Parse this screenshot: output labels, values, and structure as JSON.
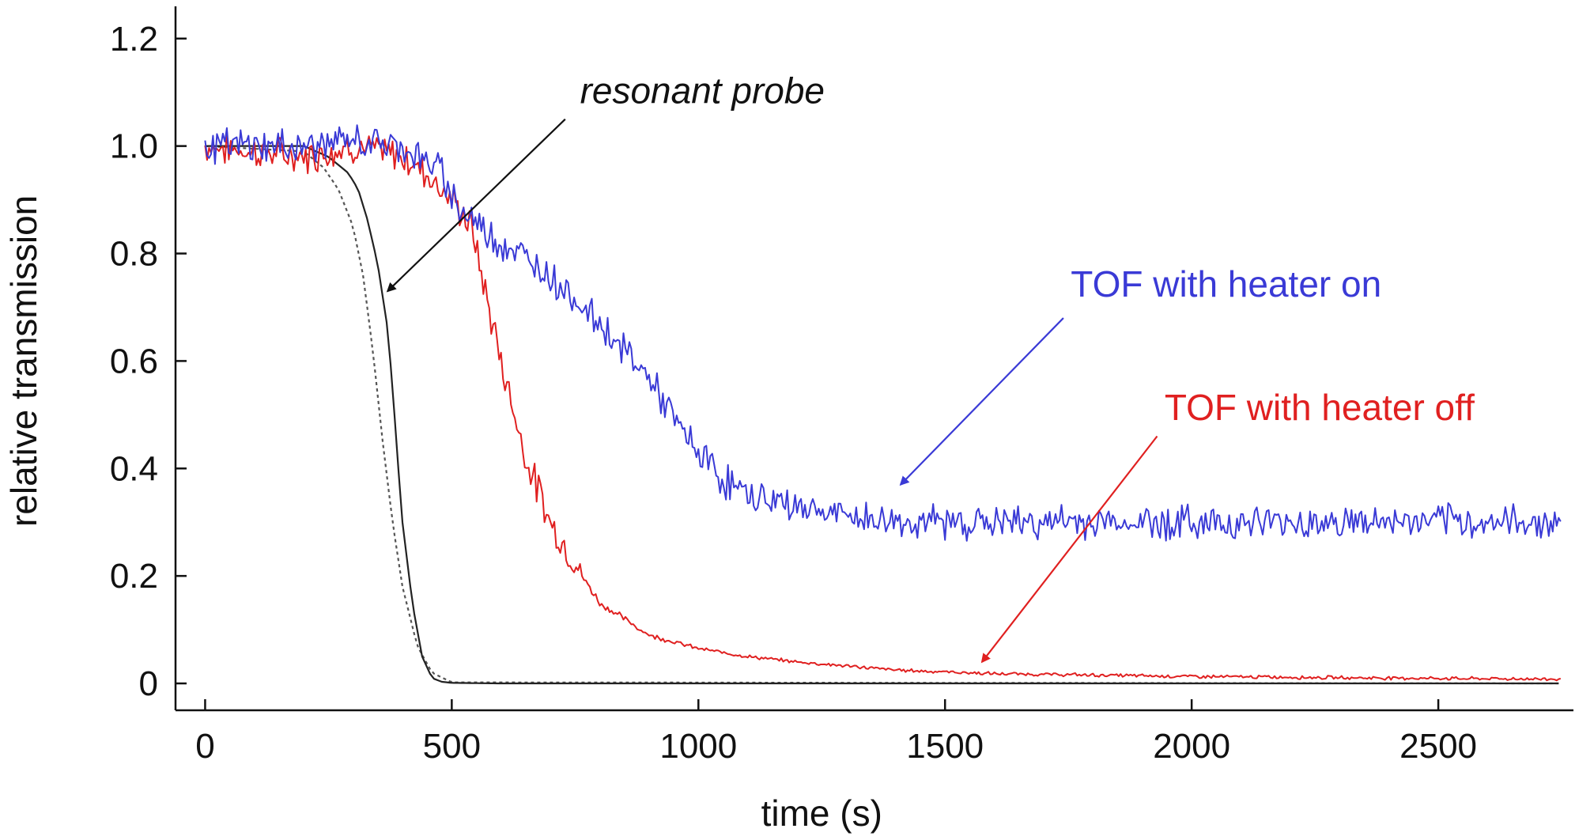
{
  "chart_data": {
    "type": "line",
    "title": "",
    "xlabel": "time (s)",
    "ylabel": "relative transmission",
    "xlim": [
      -60,
      2790
    ],
    "ylim": [
      -0.05,
      1.26
    ],
    "xticks": [
      0,
      500,
      1000,
      1500,
      2000,
      2500
    ],
    "xtick_labels": [
      "0",
      "500",
      "1000",
      "1500",
      "2000",
      "2500"
    ],
    "yticks": [
      0,
      0.2,
      0.4,
      0.6,
      0.8,
      1.0,
      1.2
    ],
    "ytick_labels": [
      "0",
      "0.2",
      "0.4",
      "0.6",
      "0.8",
      "1.0",
      "1.2"
    ],
    "grid": false,
    "series": [
      {
        "key": "heater_on",
        "color": "#3a3ad6",
        "noise": 0.025,
        "x": [
          0,
          100,
          200,
          300,
          400,
          480,
          520,
          560,
          600,
          700,
          800,
          900,
          950,
          1000,
          1050,
          1100,
          1150,
          1200,
          1300,
          1400,
          1600,
          2000,
          2400,
          2750
        ],
        "y": [
          1.0,
          1.0,
          1.0,
          1.01,
          1.0,
          0.95,
          0.88,
          0.85,
          0.82,
          0.76,
          0.67,
          0.57,
          0.49,
          0.43,
          0.38,
          0.35,
          0.34,
          0.33,
          0.31,
          0.3,
          0.3,
          0.3,
          0.3,
          0.3
        ]
      },
      {
        "key": "heater_off",
        "color": "#e02020",
        "noise": 0.025,
        "x": [
          0,
          100,
          200,
          300,
          400,
          450,
          500,
          540,
          570,
          600,
          650,
          700,
          750,
          800,
          900,
          1000,
          1100,
          1200,
          1400,
          1600,
          2000,
          2400,
          2750
        ],
        "y": [
          1.0,
          0.99,
          0.98,
          1.0,
          0.98,
          0.95,
          0.9,
          0.85,
          0.72,
          0.6,
          0.42,
          0.3,
          0.22,
          0.15,
          0.09,
          0.065,
          0.05,
          0.04,
          0.025,
          0.018,
          0.013,
          0.01,
          0.008
        ]
      },
      {
        "key": "resonant_probe",
        "color": "#222222",
        "noise": 0,
        "x": [
          0,
          200,
          250,
          290,
          310,
          330,
          350,
          370,
          380,
          390,
          400,
          420,
          440,
          460,
          480,
          500,
          600,
          2750
        ],
        "y": [
          1.0,
          1.0,
          0.98,
          0.95,
          0.92,
          0.86,
          0.78,
          0.66,
          0.55,
          0.42,
          0.3,
          0.15,
          0.05,
          0.01,
          0.003,
          0.001,
          0.0,
          0.0
        ]
      },
      {
        "key": "resonant_probe_dotted",
        "color": "#555555",
        "noise": 0,
        "dashed": true,
        "x": [
          0,
          200,
          240,
          270,
          300,
          320,
          340,
          360,
          380,
          400,
          430,
          460,
          500,
          2750
        ],
        "y": [
          1.0,
          0.99,
          0.96,
          0.92,
          0.85,
          0.76,
          0.62,
          0.45,
          0.3,
          0.18,
          0.07,
          0.02,
          0.002,
          0.0
        ]
      }
    ],
    "annotations": [
      {
        "key": "resonant",
        "text": "resonant probe",
        "color": "#111111",
        "italic": true,
        "text_x": 760,
        "text_y": 1.08,
        "arrow_from": [
          730,
          1.05
        ],
        "arrow_to": [
          370,
          0.73
        ]
      },
      {
        "key": "on",
        "text": "TOF with heater on",
        "color": "#3a3ad6",
        "italic": false,
        "text_x": 1755,
        "text_y": 0.72,
        "arrow_from": [
          1740,
          0.68
        ],
        "arrow_to": [
          1410,
          0.37
        ]
      },
      {
        "key": "off",
        "text": "TOF with heater off",
        "color": "#e02020",
        "italic": false,
        "text_x": 1945,
        "text_y": 0.49,
        "arrow_from": [
          1930,
          0.46
        ],
        "arrow_to": [
          1575,
          0.04
        ]
      }
    ]
  }
}
